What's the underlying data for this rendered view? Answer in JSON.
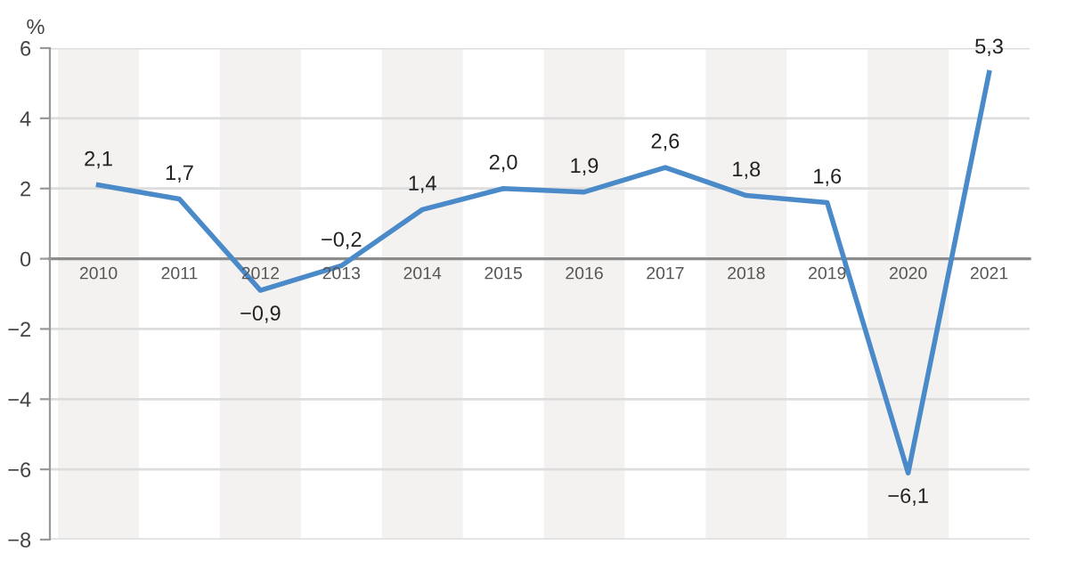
{
  "chart_data": {
    "type": "line",
    "ylabel": "%",
    "categories": [
      "2010",
      "2011",
      "2012",
      "2013",
      "2014",
      "2015",
      "2016",
      "2017",
      "2018",
      "2019",
      "2020",
      "2021"
    ],
    "series": [
      {
        "color": "#4a8ac9",
        "values": [
          2.1,
          1.7,
          -0.9,
          -0.2,
          1.4,
          2.0,
          1.9,
          2.6,
          1.8,
          1.6,
          -6.1,
          5.3
        ],
        "value_labels": [
          "2,1",
          "1,7",
          "−0,9",
          "−0,2",
          "1,4",
          "2,0",
          "1,9",
          "2,6",
          "1,8",
          "1,6",
          "−6,1",
          "5,3"
        ]
      }
    ],
    "ylim": [
      -8,
      6
    ],
    "yticks": [
      {
        "value": -8,
        "label": "−8"
      },
      {
        "value": -6,
        "label": "−6"
      },
      {
        "value": -4,
        "label": "−4"
      },
      {
        "value": -2,
        "label": "−2"
      },
      0,
      2,
      4,
      6
    ],
    "bands": [
      {
        "axis": "x",
        "from": "2010",
        "to": "2010",
        "color": "#f4f2f1"
      },
      {
        "axis": "x",
        "from": "2012",
        "to": "2012",
        "color": "#f4f2f1"
      },
      {
        "axis": "x",
        "from": "2014",
        "to": "2014",
        "color": "#f4f2f1"
      },
      {
        "axis": "x",
        "from": "2016",
        "to": "2016",
        "color": "#f4f2f1"
      },
      {
        "axis": "x",
        "from": "2018",
        "to": "2018",
        "color": "#f4f2f1"
      },
      {
        "axis": "x",
        "from": "2020",
        "to": "2020",
        "color": "#f4f2f1"
      }
    ],
    "grid": "y",
    "legend": false,
    "marker": "none",
    "line_style": "solid"
  }
}
